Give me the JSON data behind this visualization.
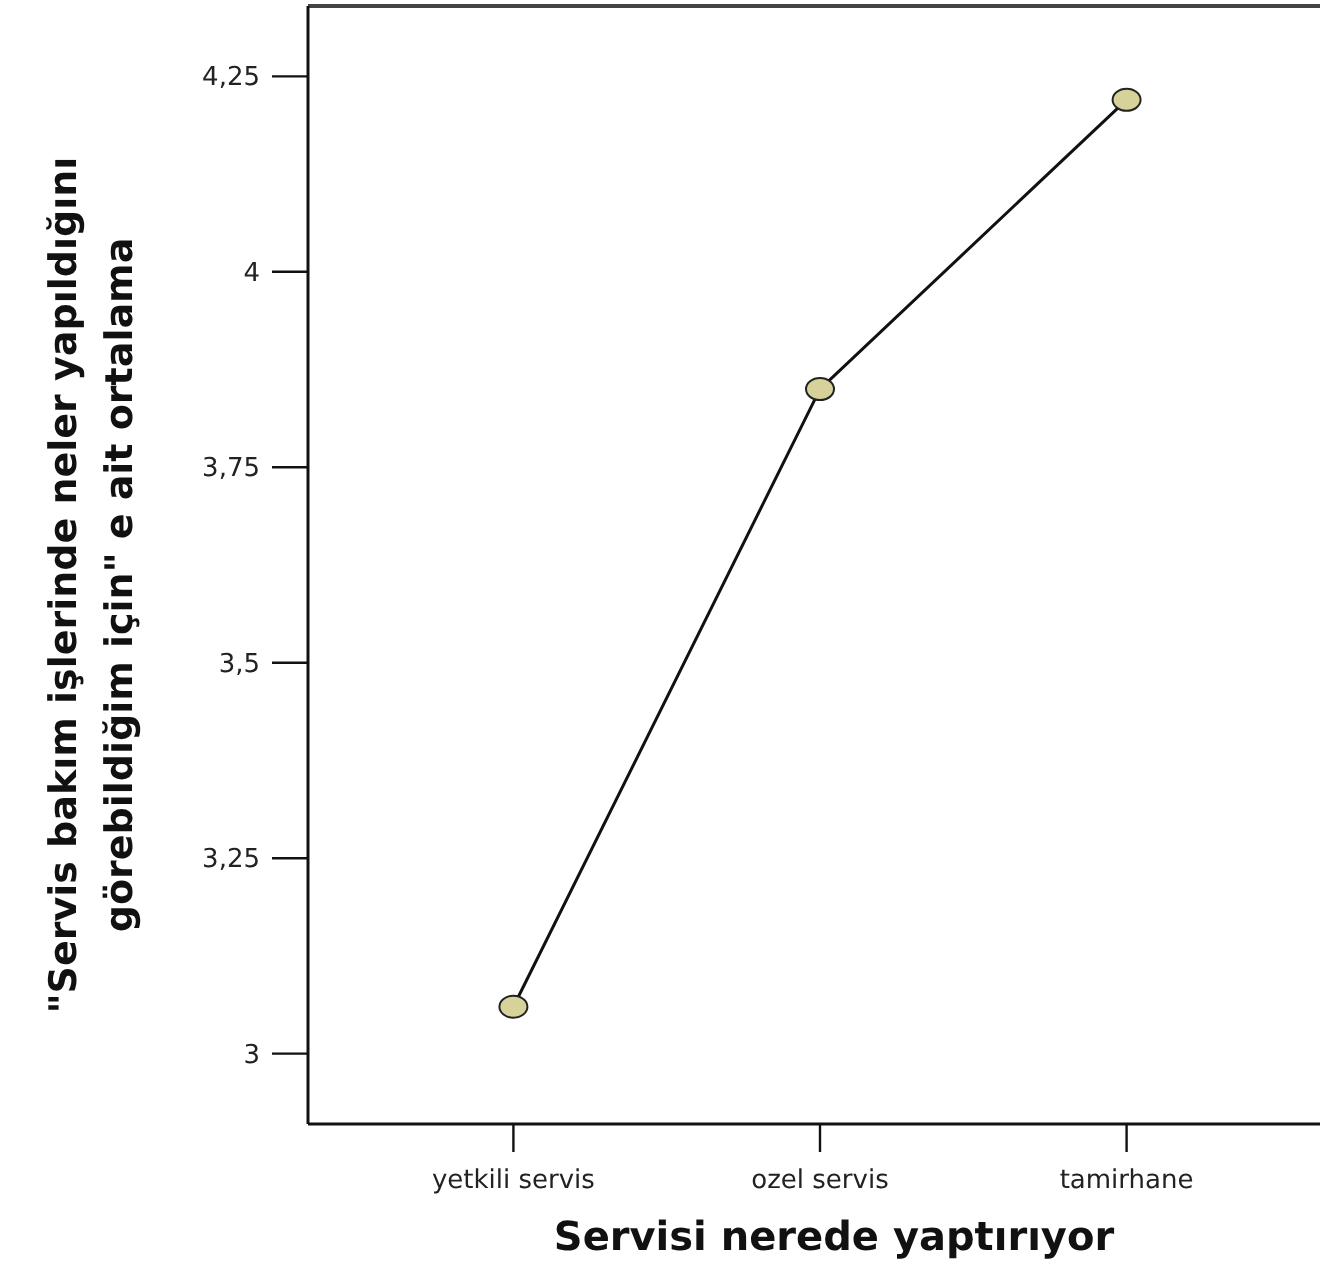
{
  "chart_data": {
    "type": "line",
    "xlabel": "Servisi nerede yaptırıyor",
    "ylabel": "\"Servis bakım işlerinde neler yapıldığını\ngörebildiğim için\" e  ait ortalama",
    "categories": [
      "yetkili servis",
      "ozel servis",
      "tamirhane"
    ],
    "series": [
      {
        "color": "#d6d29a",
        "values": [
          3.06,
          3.85,
          4.22
        ]
      }
    ],
    "ylim": [
      2.91,
      4.34
    ],
    "yticks": [
      3,
      {
        "value": 3.25,
        "label": "3,25"
      },
      {
        "value": 3.5,
        "label": "3,5"
      },
      {
        "value": 3.75,
        "label": "3,75"
      },
      4,
      {
        "value": 4.25,
        "label": "4,25"
      }
    ],
    "marker": "circle",
    "line_style": "solid"
  }
}
